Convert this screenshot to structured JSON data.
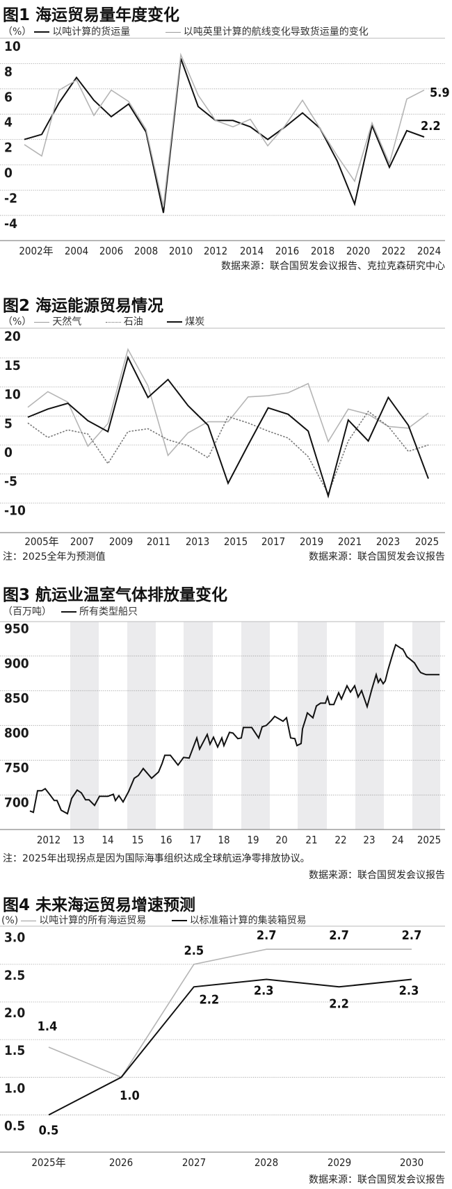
{
  "chart_data": [
    {
      "id": "fig1",
      "type": "line",
      "title": "图1 海运贸易量年度变化",
      "unit_label": "（%）",
      "ylabel": "%",
      "xlabel": "",
      "ylim": [
        -4,
        10
      ],
      "yticks": [
        10,
        8,
        6,
        4,
        2,
        0,
        -2,
        -4
      ],
      "x": [
        2001,
        2002,
        2003,
        2004,
        2005,
        2006,
        2007,
        2008,
        2009,
        2010,
        2011,
        2012,
        2013,
        2014,
        2015,
        2016,
        2017,
        2018,
        2019,
        2020,
        2021,
        2022,
        2023,
        2024
      ],
      "xtick_labels": [
        "2002年",
        "2004",
        "2006",
        "2008",
        "2010",
        "2012",
        "2014",
        "2016",
        "2018",
        "2020",
        "2022",
        "2024"
      ],
      "grid": true,
      "legend_position": "top",
      "series": [
        {
          "name": "以吨计算的货运量",
          "color": "#111111",
          "style": "solid",
          "values": [
            2.0,
            2.4,
            4.9,
            6.9,
            5.1,
            3.8,
            4.8,
            2.6,
            -3.8,
            8.4,
            4.6,
            3.5,
            3.5,
            3.0,
            2.0,
            3.0,
            4.1,
            2.9,
            0.3,
            -3.1,
            3.1,
            -0.2,
            2.7,
            2.2
          ]
        },
        {
          "name": "以吨英里计算的航线变化导致货运量的变化",
          "color": "#b5b5b5",
          "style": "solid",
          "values": [
            1.6,
            0.7,
            5.9,
            6.7,
            3.9,
            5.9,
            5.0,
            2.8,
            -3.3,
            8.7,
            5.5,
            3.5,
            3.0,
            3.6,
            1.5,
            3.1,
            5.1,
            2.9,
            0.7,
            -1.3,
            3.3,
            0.1,
            5.2,
            5.9
          ]
        }
      ],
      "annotations": [
        {
          "text": "5.9",
          "series": 1,
          "x": 2024
        },
        {
          "text": "2.2",
          "series": 0,
          "x": 2024
        }
      ],
      "source": "数据来源：联合国贸发会议报告、克拉克森研究中心"
    },
    {
      "id": "fig2",
      "type": "line",
      "title": "图2 海运能源贸易情况",
      "unit_label": "（%）",
      "ylabel": "%",
      "xlabel": "",
      "ylim": [
        -10,
        20
      ],
      "yticks": [
        20,
        15,
        10,
        5,
        0,
        -5,
        -10
      ],
      "x": [
        2005,
        2006,
        2007,
        2008,
        2009,
        2010,
        2011,
        2012,
        2013,
        2014,
        2015,
        2016,
        2017,
        2018,
        2019,
        2020,
        2021,
        2022,
        2023,
        2024,
        2025
      ],
      "xtick_labels": [
        "2005年",
        "2007",
        "2009",
        "2011",
        "2013",
        "2015",
        "2017",
        "2019",
        "2021",
        "2023",
        "2025"
      ],
      "grid": true,
      "legend_position": "top",
      "series": [
        {
          "name": "天然气",
          "color": "#b5b5b5",
          "style": "solid",
          "values": [
            6.5,
            9.2,
            7.4,
            -0.2,
            3.7,
            16.5,
            10.2,
            -1.8,
            2.1,
            4.0,
            4.0,
            8.3,
            8.5,
            9.0,
            10.6,
            0.6,
            6.2,
            5.3,
            3.2,
            2.9,
            5.5
          ]
        },
        {
          "name": "石油",
          "color": "#777777",
          "style": "dashed",
          "values": [
            3.8,
            1.3,
            2.6,
            1.9,
            -3.2,
            2.3,
            2.8,
            0.9,
            -0.1,
            -2.2,
            4.9,
            3.8,
            2.4,
            1.2,
            -2.0,
            -8.4,
            0.7,
            5.8,
            3.2,
            -1.1,
            0.0
          ]
        },
        {
          "name": "煤炭",
          "color": "#111111",
          "style": "solid",
          "values": [
            4.8,
            6.2,
            7.2,
            4.2,
            2.3,
            15.1,
            8.2,
            11.3,
            6.8,
            3.4,
            -6.6,
            0.0,
            6.4,
            5.3,
            2.4,
            -8.8,
            4.3,
            0.7,
            8.2,
            3.4,
            -5.8
          ]
        }
      ],
      "note": "注：2025全年为预测值",
      "source": "数据来源：联合国贸发会议报告"
    },
    {
      "id": "fig3",
      "type": "line",
      "title": "图3 航运业温室气体排放量变化",
      "unit_label": "（百万吨）",
      "ylabel": "百万吨",
      "xlabel": "",
      "ylim": [
        650,
        950
      ],
      "yticks": [
        950,
        900,
        850,
        800,
        750,
        700
      ],
      "xtick_labels": [
        "2012",
        "13",
        "14",
        "15",
        "16",
        "17",
        "18",
        "19",
        "20",
        "21",
        "22",
        "23",
        "24",
        "2025"
      ],
      "shaded_years": [
        "13",
        "15",
        "17",
        "19",
        "21",
        "23",
        "2025"
      ],
      "grid": true,
      "legend_position": "top",
      "series": [
        {
          "name": "所有类型船只",
          "color": "#111111",
          "style": "solid",
          "x_pos": [
            43,
            48,
            54,
            60,
            65,
            72,
            78,
            82,
            88,
            97,
            103,
            111,
            117,
            123,
            128,
            136,
            143,
            155,
            163,
            166,
            171,
            177,
            185,
            193,
            199,
            206,
            218,
            228,
            233,
            237,
            245,
            256,
            264,
            272,
            283,
            287,
            298,
            302,
            307,
            313,
            319,
            322,
            330,
            335,
            342,
            347,
            350,
            362,
            372,
            377,
            383,
            390,
            395,
            407,
            412,
            418,
            424,
            427,
            433,
            435,
            440,
            442,
            450,
            455,
            461,
            468,
            471,
            474,
            480,
            487,
            491,
            499,
            504,
            510,
            515,
            520,
            528,
            535,
            541,
            544,
            547,
            551,
            554,
            558,
            563,
            566,
            569,
            578,
            579,
            582,
            585,
            590,
            596,
            599,
            602,
            605,
            610,
            613,
            622,
            632
          ],
          "values": [
            677,
            675,
            706,
            706,
            709,
            700,
            692,
            692,
            678,
            673,
            695,
            707,
            703,
            693,
            693,
            685,
            698,
            698,
            701,
            692,
            699,
            690,
            705,
            724,
            728,
            738,
            724,
            733,
            745,
            757,
            757,
            743,
            754,
            753,
            782,
            766,
            787,
            773,
            783,
            769,
            782,
            771,
            790,
            789,
            781,
            782,
            797,
            797,
            782,
            798,
            800,
            807,
            813,
            806,
            811,
            782,
            781,
            771,
            774,
            795,
            811,
            818,
            811,
            828,
            832,
            832,
            841,
            830,
            830,
            847,
            838,
            857,
            848,
            857,
            841,
            850,
            827,
            853,
            873,
            862,
            867,
            860,
            864,
            880,
            897,
            907,
            916,
            910,
            910,
            905,
            899,
            895,
            890,
            885,
            880,
            876,
            874,
            873,
            873,
            873
          ]
        }
      ],
      "note": "注：2025年出现拐点是因为国际海事组织达成全球航运净零排放协议。",
      "source": "数据来源：联合国贸发会议报告"
    },
    {
      "id": "fig4",
      "type": "line",
      "title": "图4 未来海运贸易增速预测",
      "unit_label": "(%)",
      "ylabel": "%",
      "xlabel": "",
      "ylim": [
        0.0,
        3.0
      ],
      "yticks": [
        3.0,
        2.5,
        2.0,
        1.5,
        1.0,
        0.5
      ],
      "x": [
        2025,
        2026,
        2027,
        2028,
        2029,
        2030
      ],
      "xtick_labels": [
        "2025年",
        "2026",
        "2027",
        "2028",
        "2029",
        "2030"
      ],
      "grid": true,
      "legend_position": "top",
      "series": [
        {
          "name": "以吨计算的所有海运贸易",
          "color": "#b5b5b5",
          "style": "solid",
          "values": [
            1.4,
            1.0,
            2.5,
            2.7,
            2.7,
            2.7
          ],
          "labels": [
            "1.4",
            "",
            "2.5",
            "2.7",
            "2.7",
            "2.7"
          ]
        },
        {
          "name": "以标准箱计算的集装箱贸易",
          "color": "#111111",
          "style": "solid",
          "values": [
            0.5,
            1.0,
            2.2,
            2.3,
            2.2,
            2.3
          ],
          "labels": [
            "0.5",
            "1.0",
            "2.2",
            "2.3",
            "2.2",
            "2.3"
          ]
        }
      ],
      "source": "数据来源：联合国贸发会议报告"
    }
  ]
}
